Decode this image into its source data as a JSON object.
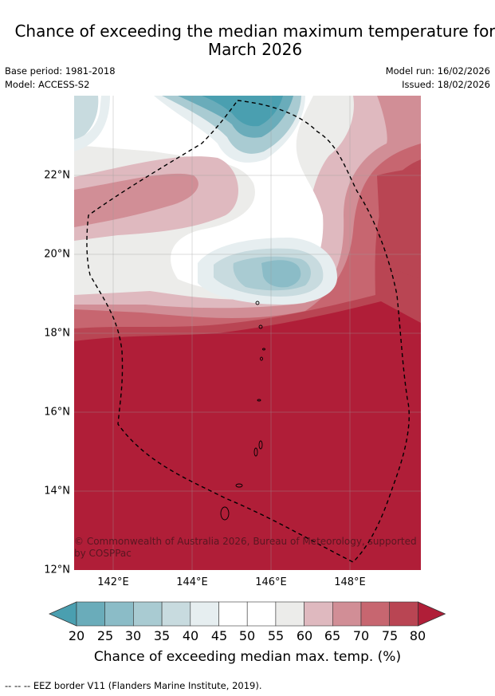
{
  "header": {
    "title_line1": "Chance of exceeding the median maximum temperature for",
    "title_line2": "March 2026",
    "base_period": "Base period: 1981-2018",
    "model": "Model: ACCESS-S2",
    "model_run": "Model run: 16/02/2026",
    "issued": "Issued: 18/02/2026"
  },
  "map": {
    "lat_labels": [
      "22°N",
      "20°N",
      "18°N",
      "16°N",
      "14°N",
      "12°N"
    ],
    "lon_labels": [
      "142°E",
      "144°E",
      "146°E",
      "148°E"
    ],
    "copyright": "© Commonwealth of Australia 2026, Bureau of Meteorology, supported by COSPPac"
  },
  "colorbar": {
    "ticks": [
      "20",
      "25",
      "30",
      "35",
      "40",
      "45",
      "50",
      "55",
      "60",
      "65",
      "70",
      "75",
      "80"
    ],
    "colors": [
      "#4a9fb0",
      "#6aacba",
      "#8bbcc7",
      "#a9cbd2",
      "#c8dbdf",
      "#e6eef0",
      "#ffffff",
      "#ffffff",
      "#ececea",
      "#dfb9bf",
      "#d18e96",
      "#c76670",
      "#b94553",
      "#b01e38"
    ],
    "label": "Chance of exceeding median max. temp. (%)"
  },
  "footnote": "--  --  -- EEZ border V11 (Flanders Marine Institute, 2019)."
}
